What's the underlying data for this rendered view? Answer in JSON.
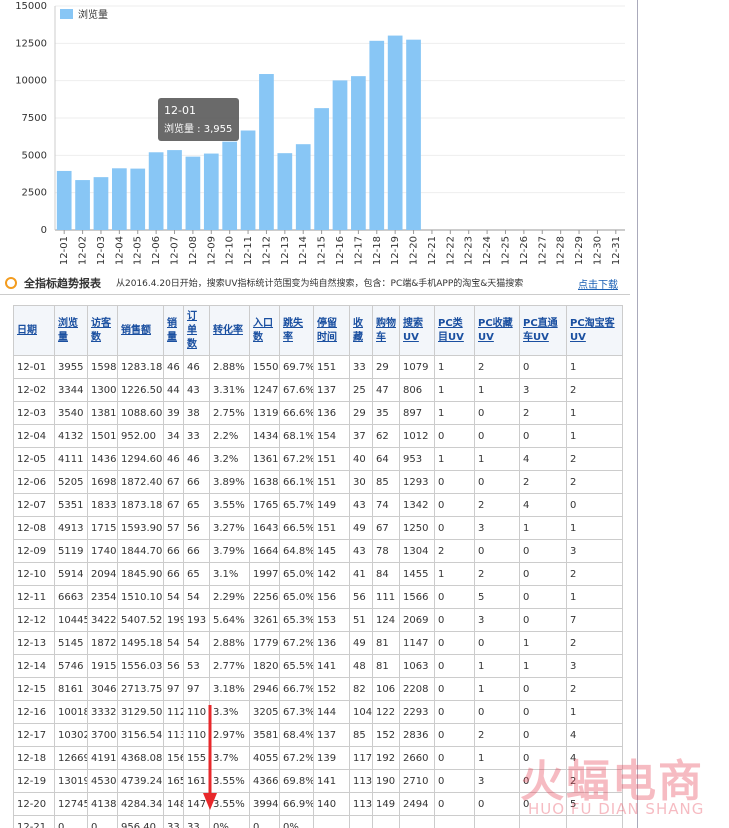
{
  "chart_data": {
    "type": "bar",
    "legend": "浏览量",
    "color": "#88c6f5",
    "categories": [
      "12-01",
      "12-02",
      "12-03",
      "12-04",
      "12-05",
      "12-06",
      "12-07",
      "12-08",
      "12-09",
      "12-10",
      "12-11",
      "12-12",
      "12-13",
      "12-14",
      "12-15",
      "12-16",
      "12-17",
      "12-18",
      "12-19",
      "12-20",
      "12-21",
      "12-22",
      "12-23",
      "12-24",
      "12-25",
      "12-26",
      "12-27",
      "12-28",
      "12-29",
      "12-30",
      "12-31"
    ],
    "values": [
      3955,
      3344,
      3540,
      4132,
      4111,
      5205,
      5351,
      4913,
      5119,
      5914,
      6663,
      10445,
      5145,
      5746,
      8161,
      10018,
      10302,
      12669,
      13019,
      12745,
      null,
      null,
      null,
      null,
      null,
      null,
      null,
      null,
      null,
      null,
      null
    ],
    "ylim": [
      0,
      15000
    ],
    "yticks": [
      0,
      2500,
      5000,
      7500,
      10000,
      12500,
      15000
    ],
    "grid": true,
    "tooltip": {
      "title": "12-01",
      "text": "浏览量 : 3,955"
    }
  },
  "section": {
    "title": "全指标趋势报表",
    "note": "从2016.4.20日开始，搜索UV指标统计范围变为纯自然搜索，包含：PC端&手机APP的淘宝&天猫搜索",
    "link": "点击下载"
  },
  "table": {
    "headers": [
      "日期",
      "浏览量",
      "访客数",
      "销售额",
      "销量",
      "订单数",
      "转化率",
      "入口数",
      "跳失率",
      "停留时间",
      "收藏",
      "购物车",
      "搜索UV",
      "PC类目UV",
      "PC收藏UV",
      "PC直通车UV",
      "PC淘宝客UV"
    ],
    "rows": [
      [
        "12-01",
        "3955",
        "1598",
        "1283.18",
        "46",
        "46",
        "2.88%",
        "1550",
        "69.7%",
        "151",
        "33",
        "29",
        "1079",
        "1",
        "2",
        "0",
        "1"
      ],
      [
        "12-02",
        "3344",
        "1300",
        "1226.50",
        "44",
        "43",
        "3.31%",
        "1247",
        "67.6%",
        "137",
        "25",
        "47",
        "806",
        "1",
        "1",
        "3",
        "2"
      ],
      [
        "12-03",
        "3540",
        "1381",
        "1088.60",
        "39",
        "38",
        "2.75%",
        "1319",
        "66.6%",
        "136",
        "29",
        "35",
        "897",
        "1",
        "0",
        "2",
        "1"
      ],
      [
        "12-04",
        "4132",
        "1501",
        "952.00",
        "34",
        "33",
        "2.2%",
        "1434",
        "68.1%",
        "154",
        "37",
        "62",
        "1012",
        "0",
        "0",
        "0",
        "1"
      ],
      [
        "12-05",
        "4111",
        "1436",
        "1294.60",
        "46",
        "46",
        "3.2%",
        "1361",
        "67.2%",
        "151",
        "40",
        "64",
        "953",
        "1",
        "1",
        "4",
        "2"
      ],
      [
        "12-06",
        "5205",
        "1698",
        "1872.40",
        "67",
        "66",
        "3.89%",
        "1638",
        "66.1%",
        "151",
        "30",
        "85",
        "1293",
        "0",
        "0",
        "2",
        "2"
      ],
      [
        "12-07",
        "5351",
        "1833",
        "1873.18",
        "67",
        "65",
        "3.55%",
        "1765",
        "65.7%",
        "149",
        "43",
        "74",
        "1342",
        "0",
        "2",
        "4",
        "0"
      ],
      [
        "12-08",
        "4913",
        "1715",
        "1593.90",
        "57",
        "56",
        "3.27%",
        "1643",
        "66.5%",
        "151",
        "49",
        "67",
        "1250",
        "0",
        "3",
        "1",
        "1"
      ],
      [
        "12-09",
        "5119",
        "1740",
        "1844.70",
        "66",
        "66",
        "3.79%",
        "1664",
        "64.8%",
        "145",
        "43",
        "78",
        "1304",
        "2",
        "0",
        "0",
        "3"
      ],
      [
        "12-10",
        "5914",
        "2094",
        "1845.90",
        "66",
        "65",
        "3.1%",
        "1997",
        "65.0%",
        "142",
        "41",
        "84",
        "1455",
        "1",
        "2",
        "0",
        "2"
      ],
      [
        "12-11",
        "6663",
        "2354",
        "1510.10",
        "54",
        "54",
        "2.29%",
        "2256",
        "65.0%",
        "156",
        "56",
        "111",
        "1566",
        "0",
        "5",
        "0",
        "1"
      ],
      [
        "12-12",
        "10445",
        "3422",
        "5407.52",
        "199",
        "193",
        "5.64%",
        "3261",
        "65.3%",
        "153",
        "51",
        "124",
        "2069",
        "0",
        "3",
        "0",
        "7"
      ],
      [
        "12-13",
        "5145",
        "1872",
        "1495.18",
        "54",
        "54",
        "2.88%",
        "1779",
        "67.2%",
        "136",
        "49",
        "81",
        "1147",
        "0",
        "0",
        "1",
        "2"
      ],
      [
        "12-14",
        "5746",
        "1915",
        "1556.03",
        "56",
        "53",
        "2.77%",
        "1820",
        "65.5%",
        "141",
        "48",
        "81",
        "1063",
        "0",
        "1",
        "1",
        "3"
      ],
      [
        "12-15",
        "8161",
        "3046",
        "2713.75",
        "97",
        "97",
        "3.18%",
        "2946",
        "66.7%",
        "152",
        "82",
        "106",
        "2208",
        "0",
        "1",
        "0",
        "2"
      ],
      [
        "12-16",
        "10018",
        "3332",
        "3129.50",
        "112",
        "110",
        "3.3%",
        "3205",
        "67.3%",
        "144",
        "104",
        "122",
        "2293",
        "0",
        "0",
        "0",
        "1"
      ],
      [
        "12-17",
        "10302",
        "3700",
        "3156.54",
        "113",
        "110",
        "2.97%",
        "3581",
        "68.4%",
        "137",
        "85",
        "152",
        "2836",
        "0",
        "2",
        "0",
        "4"
      ],
      [
        "12-18",
        "12669",
        "4191",
        "4368.08",
        "156",
        "155",
        "3.7%",
        "4055",
        "67.2%",
        "139",
        "117",
        "192",
        "2660",
        "0",
        "1",
        "0",
        "4"
      ],
      [
        "12-19",
        "13019",
        "4530",
        "4739.24",
        "165",
        "161",
        "3.55%",
        "4366",
        "69.8%",
        "141",
        "113",
        "190",
        "2710",
        "0",
        "3",
        "0",
        "2"
      ],
      [
        "12-20",
        "12745",
        "4138",
        "4284.34",
        "148",
        "147",
        "3.55%",
        "3994",
        "66.9%",
        "140",
        "113",
        "149",
        "2494",
        "0",
        "0",
        "0",
        "5"
      ],
      [
        "12-21",
        "0",
        "0",
        "956.40",
        "33",
        "33",
        "0%",
        "0",
        "0%"
      ]
    ]
  },
  "watermark": {
    "text": "火蝠电商",
    "subtext": "HUO FU DIAN SHANG"
  }
}
